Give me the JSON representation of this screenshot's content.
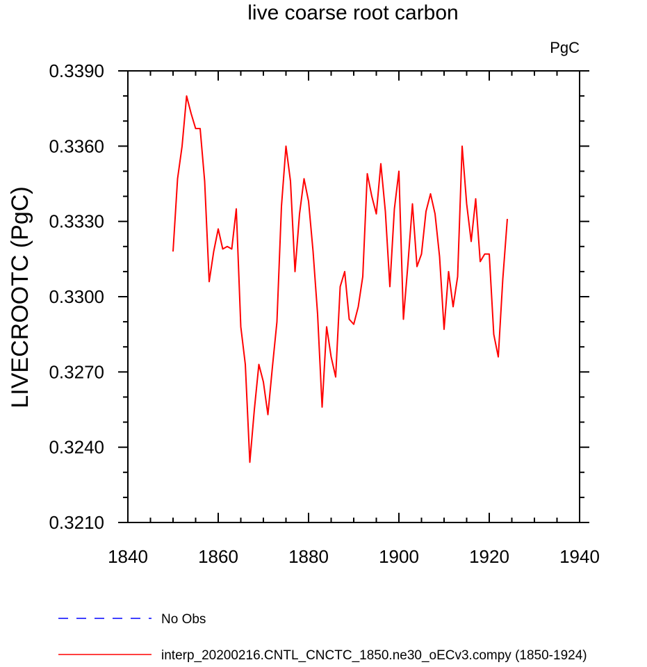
{
  "chart_data": {
    "type": "line",
    "title": "live coarse root carbon",
    "units": "PgC",
    "ylabel": "LIVECROOTC  (PgC)",
    "xlabel": "",
    "xlim": [
      1840,
      1940
    ],
    "ylim": [
      0.321,
      0.339
    ],
    "x_ticks": [
      1840,
      1860,
      1880,
      1900,
      1920,
      1940
    ],
    "y_ticks": [
      0.321,
      0.324,
      0.327,
      0.33,
      0.333,
      0.336,
      0.339
    ],
    "x_tick_labels": [
      "1840",
      "1860",
      "1880",
      "1900",
      "1920",
      "1940"
    ],
    "y_tick_labels": [
      "0.3210",
      "0.3240",
      "0.3270",
      "0.3300",
      "0.3330",
      "0.3360",
      "0.3390"
    ],
    "grid": false,
    "legend_position": "bottom",
    "series": [
      {
        "name": "No Obs",
        "color": "#0000ff",
        "style": "dashed",
        "x": [],
        "y": []
      },
      {
        "name": "interp_20200216.CNTL_CNCTC_1850.ne30_oECv3.compy (1850-1924)",
        "color": "#ff0000",
        "style": "solid",
        "x": [
          1850,
          1851,
          1852,
          1853,
          1854,
          1855,
          1856,
          1857,
          1858,
          1859,
          1860,
          1861,
          1862,
          1863,
          1864,
          1865,
          1866,
          1867,
          1868,
          1869,
          1870,
          1871,
          1872,
          1873,
          1874,
          1875,
          1876,
          1877,
          1878,
          1879,
          1880,
          1881,
          1882,
          1883,
          1884,
          1885,
          1886,
          1887,
          1888,
          1889,
          1890,
          1891,
          1892,
          1893,
          1894,
          1895,
          1896,
          1897,
          1898,
          1899,
          1900,
          1901,
          1902,
          1903,
          1904,
          1905,
          1906,
          1907,
          1908,
          1909,
          1910,
          1911,
          1912,
          1913,
          1914,
          1915,
          1916,
          1917,
          1918,
          1919,
          1920,
          1921,
          1922,
          1923,
          1924
        ],
        "y": [
          0.3318,
          0.3347,
          0.336,
          0.338,
          0.3373,
          0.3367,
          0.3367,
          0.3346,
          0.3306,
          0.3318,
          0.3327,
          0.3319,
          0.332,
          0.3319,
          0.3335,
          0.3288,
          0.3273,
          0.3234,
          0.3255,
          0.3273,
          0.3266,
          0.3253,
          0.3272,
          0.329,
          0.3336,
          0.336,
          0.3346,
          0.331,
          0.3333,
          0.3347,
          0.3338,
          0.3318,
          0.3293,
          0.3256,
          0.3288,
          0.3276,
          0.3268,
          0.3304,
          0.331,
          0.3291,
          0.3289,
          0.3296,
          0.3308,
          0.3349,
          0.334,
          0.3333,
          0.3353,
          0.3334,
          0.3304,
          0.3335,
          0.335,
          0.3291,
          0.3313,
          0.3337,
          0.3312,
          0.3317,
          0.3334,
          0.3341,
          0.3333,
          0.3316,
          0.3287,
          0.331,
          0.3296,
          0.3308,
          0.336,
          0.3337,
          0.3322,
          0.3339,
          0.3314,
          0.3317,
          0.3317,
          0.3285,
          0.3276,
          0.3307,
          0.3331
        ]
      }
    ]
  }
}
